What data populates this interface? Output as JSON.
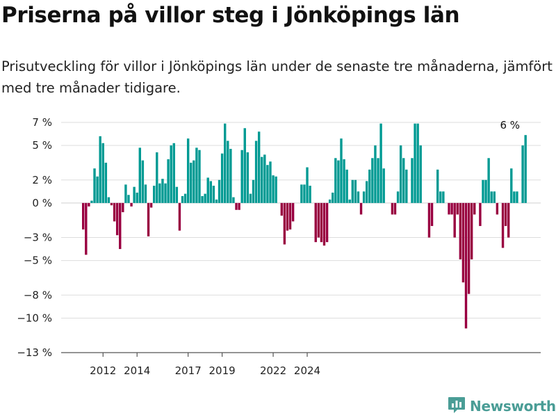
{
  "header": {
    "title": "Priserna på villor steg i Jönköpings län",
    "subtitle": "Prisutveckling för villor i Jönköpings län under de senaste tre månaderna, jämfört med tre månader tidigare."
  },
  "brand": {
    "name": "Newsworthy",
    "icon": "newsworthy-logo-icon",
    "color": "#4a9d96"
  },
  "colors": {
    "positive": "#009a93",
    "negative": "#990040",
    "grid": "#dddddd"
  },
  "chart_data": {
    "type": "bar",
    "title": "Priserna på villor steg i Jönköpings län",
    "xlabel": "",
    "ylabel": "",
    "ylim": [
      -13,
      7
    ],
    "yticks": [
      7,
      5,
      2,
      0,
      -3,
      -5,
      -8,
      -10,
      -13
    ],
    "ytick_labels": [
      "7 %",
      "5 %",
      "2 %",
      "0 %",
      "−3 %",
      "−5 %",
      "−8 %",
      "−10 %",
      "−13 %"
    ],
    "xticks": [
      "2012",
      "2014",
      "2017",
      "2019",
      "2022",
      "2024"
    ],
    "xtick_months": [
      7,
      19,
      37,
      49,
      67,
      79
    ],
    "annotation": {
      "text": "6 %",
      "month_index": 154
    },
    "values": [
      -2.3,
      -4.5,
      -0.3,
      0.2,
      3.0,
      2.3,
      5.8,
      5.2,
      3.5,
      0.5,
      -0.2,
      -1.6,
      -2.8,
      -4.0,
      -0.8,
      1.6,
      0.7,
      -0.3,
      1.4,
      0.9,
      4.8,
      3.7,
      1.6,
      -2.9,
      -0.4,
      1.5,
      4.4,
      1.7,
      2.1,
      1.7,
      3.8,
      5.0,
      5.2,
      1.4,
      -2.4,
      0.6,
      0.8,
      5.6,
      3.5,
      3.7,
      4.8,
      4.6,
      0.6,
      0.8,
      2.2,
      1.9,
      1.5,
      0.3,
      2.0,
      4.3,
      6.9,
      5.4,
      4.7,
      0.5,
      -0.6,
      -0.6,
      4.6,
      6.5,
      4.4,
      0.8,
      2.0,
      5.4,
      6.2,
      4.0,
      4.2,
      3.3,
      3.6,
      2.4,
      2.3,
      0.0,
      -1.1,
      -3.6,
      -2.4,
      -2.3,
      -1.6,
      0.0,
      0.0,
      1.6,
      1.6,
      3.1,
      1.5,
      0.0,
      -3.4,
      -3.0,
      -3.4,
      -3.7,
      -3.4,
      0.3,
      0.9,
      3.9,
      3.7,
      5.6,
      3.8,
      2.9,
      0.3,
      2.0,
      2.0,
      1.0,
      -1.0,
      1.0,
      1.9,
      2.9,
      3.9,
      5.0,
      3.9,
      6.9,
      3.0,
      0.0,
      0.0,
      -1.0,
      -1.0,
      1.0,
      5.0,
      3.9,
      2.9,
      0.0,
      3.9,
      6.9,
      6.9,
      5.0,
      0.0,
      0.0,
      -3.0,
      -2.0,
      0.0,
      2.9,
      1.0,
      1.0,
      0.0,
      -1.0,
      -1.0,
      -3.0,
      -1.0,
      -4.9,
      -6.9,
      -10.9,
      -7.9,
      -4.9,
      -1.0,
      0.0,
      -2.0,
      2.0,
      2.0,
      3.9,
      1.0,
      1.0,
      -1.0,
      0.0,
      -3.9,
      -2.0,
      -3.0,
      3.0,
      1.0,
      1.0,
      0.0,
      5.0,
      5.9
    ]
  }
}
